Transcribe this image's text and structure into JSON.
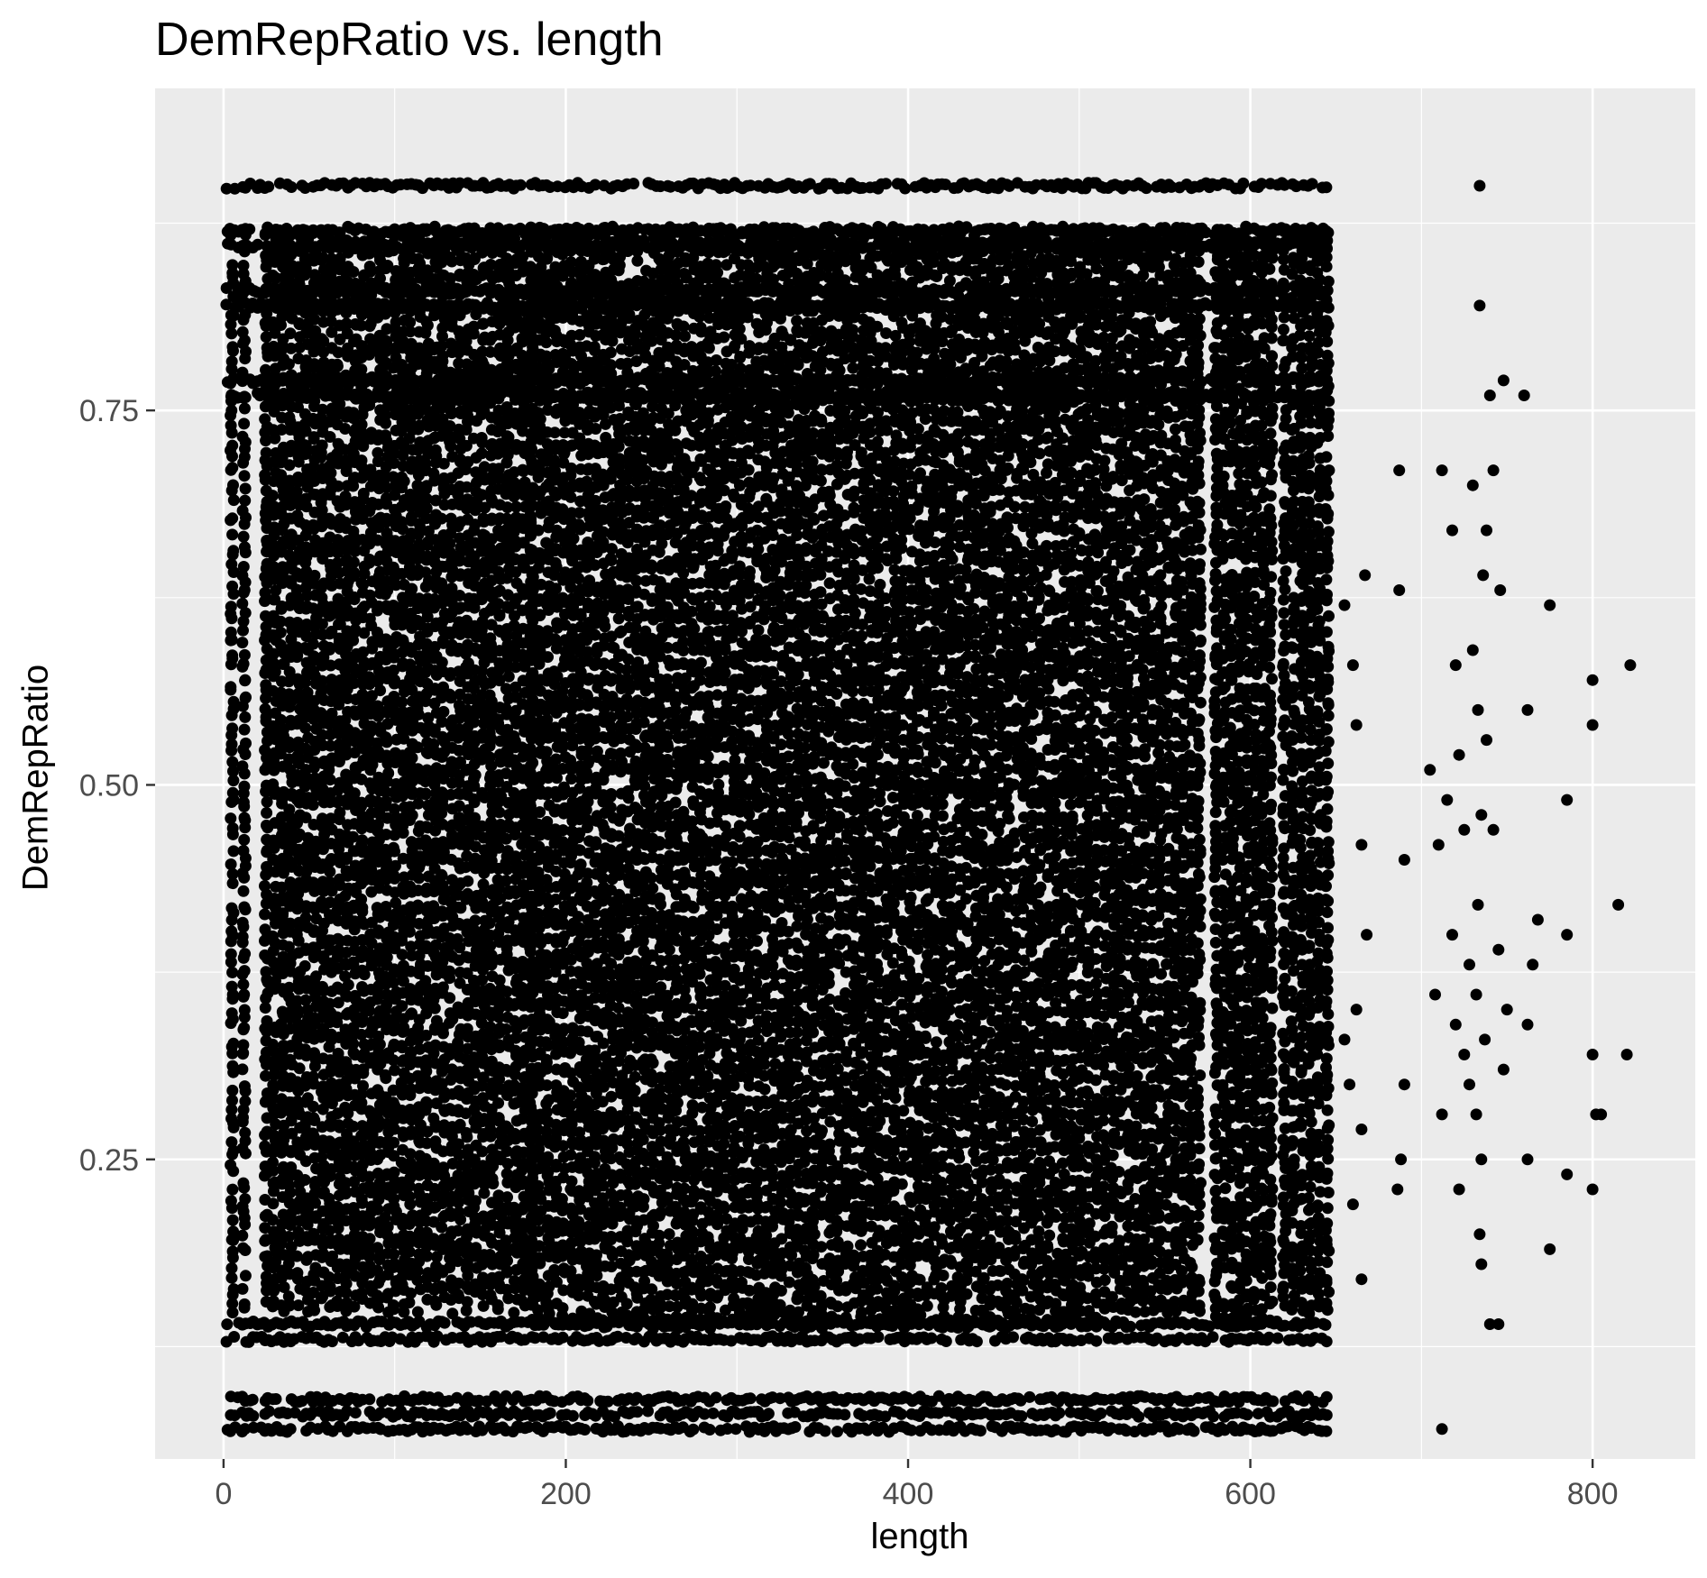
{
  "chart_data": {
    "type": "scatter",
    "title": "DemRepRatio vs. length",
    "xlabel": "length",
    "ylabel": "DemRepRatio",
    "xlim": [
      -40,
      860
    ],
    "ylim": [
      0.05,
      0.965
    ],
    "x_ticks": [
      {
        "value": 0,
        "label": "0"
      },
      {
        "value": 200,
        "label": "200"
      },
      {
        "value": 400,
        "label": "400"
      },
      {
        "value": 600,
        "label": "600"
      },
      {
        "value": 800,
        "label": "800"
      }
    ],
    "y_ticks": [
      {
        "value": 0.25,
        "label": "0.25"
      },
      {
        "value": 0.5,
        "label": "0.50"
      },
      {
        "value": 0.75,
        "label": "0.75"
      }
    ],
    "minor_x_gridlines": [
      100,
      300,
      500,
      700
    ],
    "minor_y_gridlines": [
      0.125,
      0.375,
      0.625,
      0.875
    ],
    "grid": true,
    "legend": "none",
    "colors": {
      "panel": "#EBEBEB",
      "grid": "#FFFFFF",
      "point": "#000000",
      "axis_text": "#4D4D4D"
    },
    "dense_regions": [
      {
        "x": [
          5,
          12
        ],
        "y": [
          0.15,
          0.87
        ]
      },
      {
        "x": [
          25,
          180
        ],
        "y": [
          0.15,
          0.87
        ]
      },
      {
        "x": [
          180,
          510
        ],
        "y": [
          0.14,
          0.87
        ]
      },
      {
        "x": [
          515,
          570
        ],
        "y": [
          0.15,
          0.87
        ]
      },
      {
        "x": [
          580,
          612
        ],
        "y": [
          0.14,
          0.87
        ]
      },
      {
        "x": [
          620,
          645
        ],
        "y": [
          0.15,
          0.87
        ]
      }
    ],
    "rows": [
      0.07,
      0.08,
      0.09,
      0.13,
      0.14,
      0.76,
      0.77,
      0.82,
      0.83,
      0.86,
      0.87,
      0.9
    ],
    "sparse_points": [
      [
        655,
        0.62
      ],
      [
        660,
        0.58
      ],
      [
        662,
        0.54
      ],
      [
        665,
        0.46
      ],
      [
        668,
        0.4
      ],
      [
        662,
        0.35
      ],
      [
        658,
        0.3
      ],
      [
        665,
        0.27
      ],
      [
        660,
        0.22
      ],
      [
        665,
        0.17
      ],
      [
        655,
        0.33
      ],
      [
        667,
        0.64
      ],
      [
        687,
        0.71
      ],
      [
        690,
        0.45
      ],
      [
        690,
        0.3
      ],
      [
        688,
        0.25
      ],
      [
        686,
        0.23
      ],
      [
        687,
        0.63
      ],
      [
        705,
        0.51
      ],
      [
        708,
        0.36
      ],
      [
        710,
        0.46
      ],
      [
        712,
        0.71
      ],
      [
        712,
        0.28
      ],
      [
        712,
        0.07
      ],
      [
        715,
        0.49
      ],
      [
        718,
        0.67
      ],
      [
        718,
        0.4
      ],
      [
        720,
        0.58
      ],
      [
        720,
        0.34
      ],
      [
        722,
        0.23
      ],
      [
        722,
        0.52
      ],
      [
        725,
        0.47
      ],
      [
        725,
        0.32
      ],
      [
        728,
        0.38
      ],
      [
        728,
        0.3
      ],
      [
        730,
        0.59
      ],
      [
        730,
        0.7
      ],
      [
        732,
        0.36
      ],
      [
        732,
        0.28
      ],
      [
        733,
        0.55
      ],
      [
        733,
        0.42
      ],
      [
        734,
        0.9
      ],
      [
        734,
        0.82
      ],
      [
        734,
        0.2
      ],
      [
        735,
        0.18
      ],
      [
        735,
        0.25
      ],
      [
        735,
        0.48
      ],
      [
        736,
        0.64
      ],
      [
        737,
        0.33
      ],
      [
        738,
        0.67
      ],
      [
        738,
        0.53
      ],
      [
        740,
        0.76
      ],
      [
        740,
        0.14
      ],
      [
        742,
        0.71
      ],
      [
        742,
        0.47
      ],
      [
        745,
        0.39
      ],
      [
        745,
        0.14
      ],
      [
        746,
        0.63
      ],
      [
        748,
        0.77
      ],
      [
        748,
        0.31
      ],
      [
        750,
        0.35
      ],
      [
        760,
        0.76
      ],
      [
        762,
        0.34
      ],
      [
        762,
        0.55
      ],
      [
        762,
        0.25
      ],
      [
        765,
        0.38
      ],
      [
        768,
        0.41
      ],
      [
        775,
        0.62
      ],
      [
        775,
        0.19
      ],
      [
        785,
        0.49
      ],
      [
        785,
        0.4
      ],
      [
        785,
        0.24
      ],
      [
        800,
        0.57
      ],
      [
        800,
        0.54
      ],
      [
        800,
        0.32
      ],
      [
        800,
        0.23
      ],
      [
        802,
        0.28
      ],
      [
        805,
        0.28
      ],
      [
        815,
        0.42
      ],
      [
        820,
        0.32
      ],
      [
        822,
        0.58
      ]
    ]
  }
}
